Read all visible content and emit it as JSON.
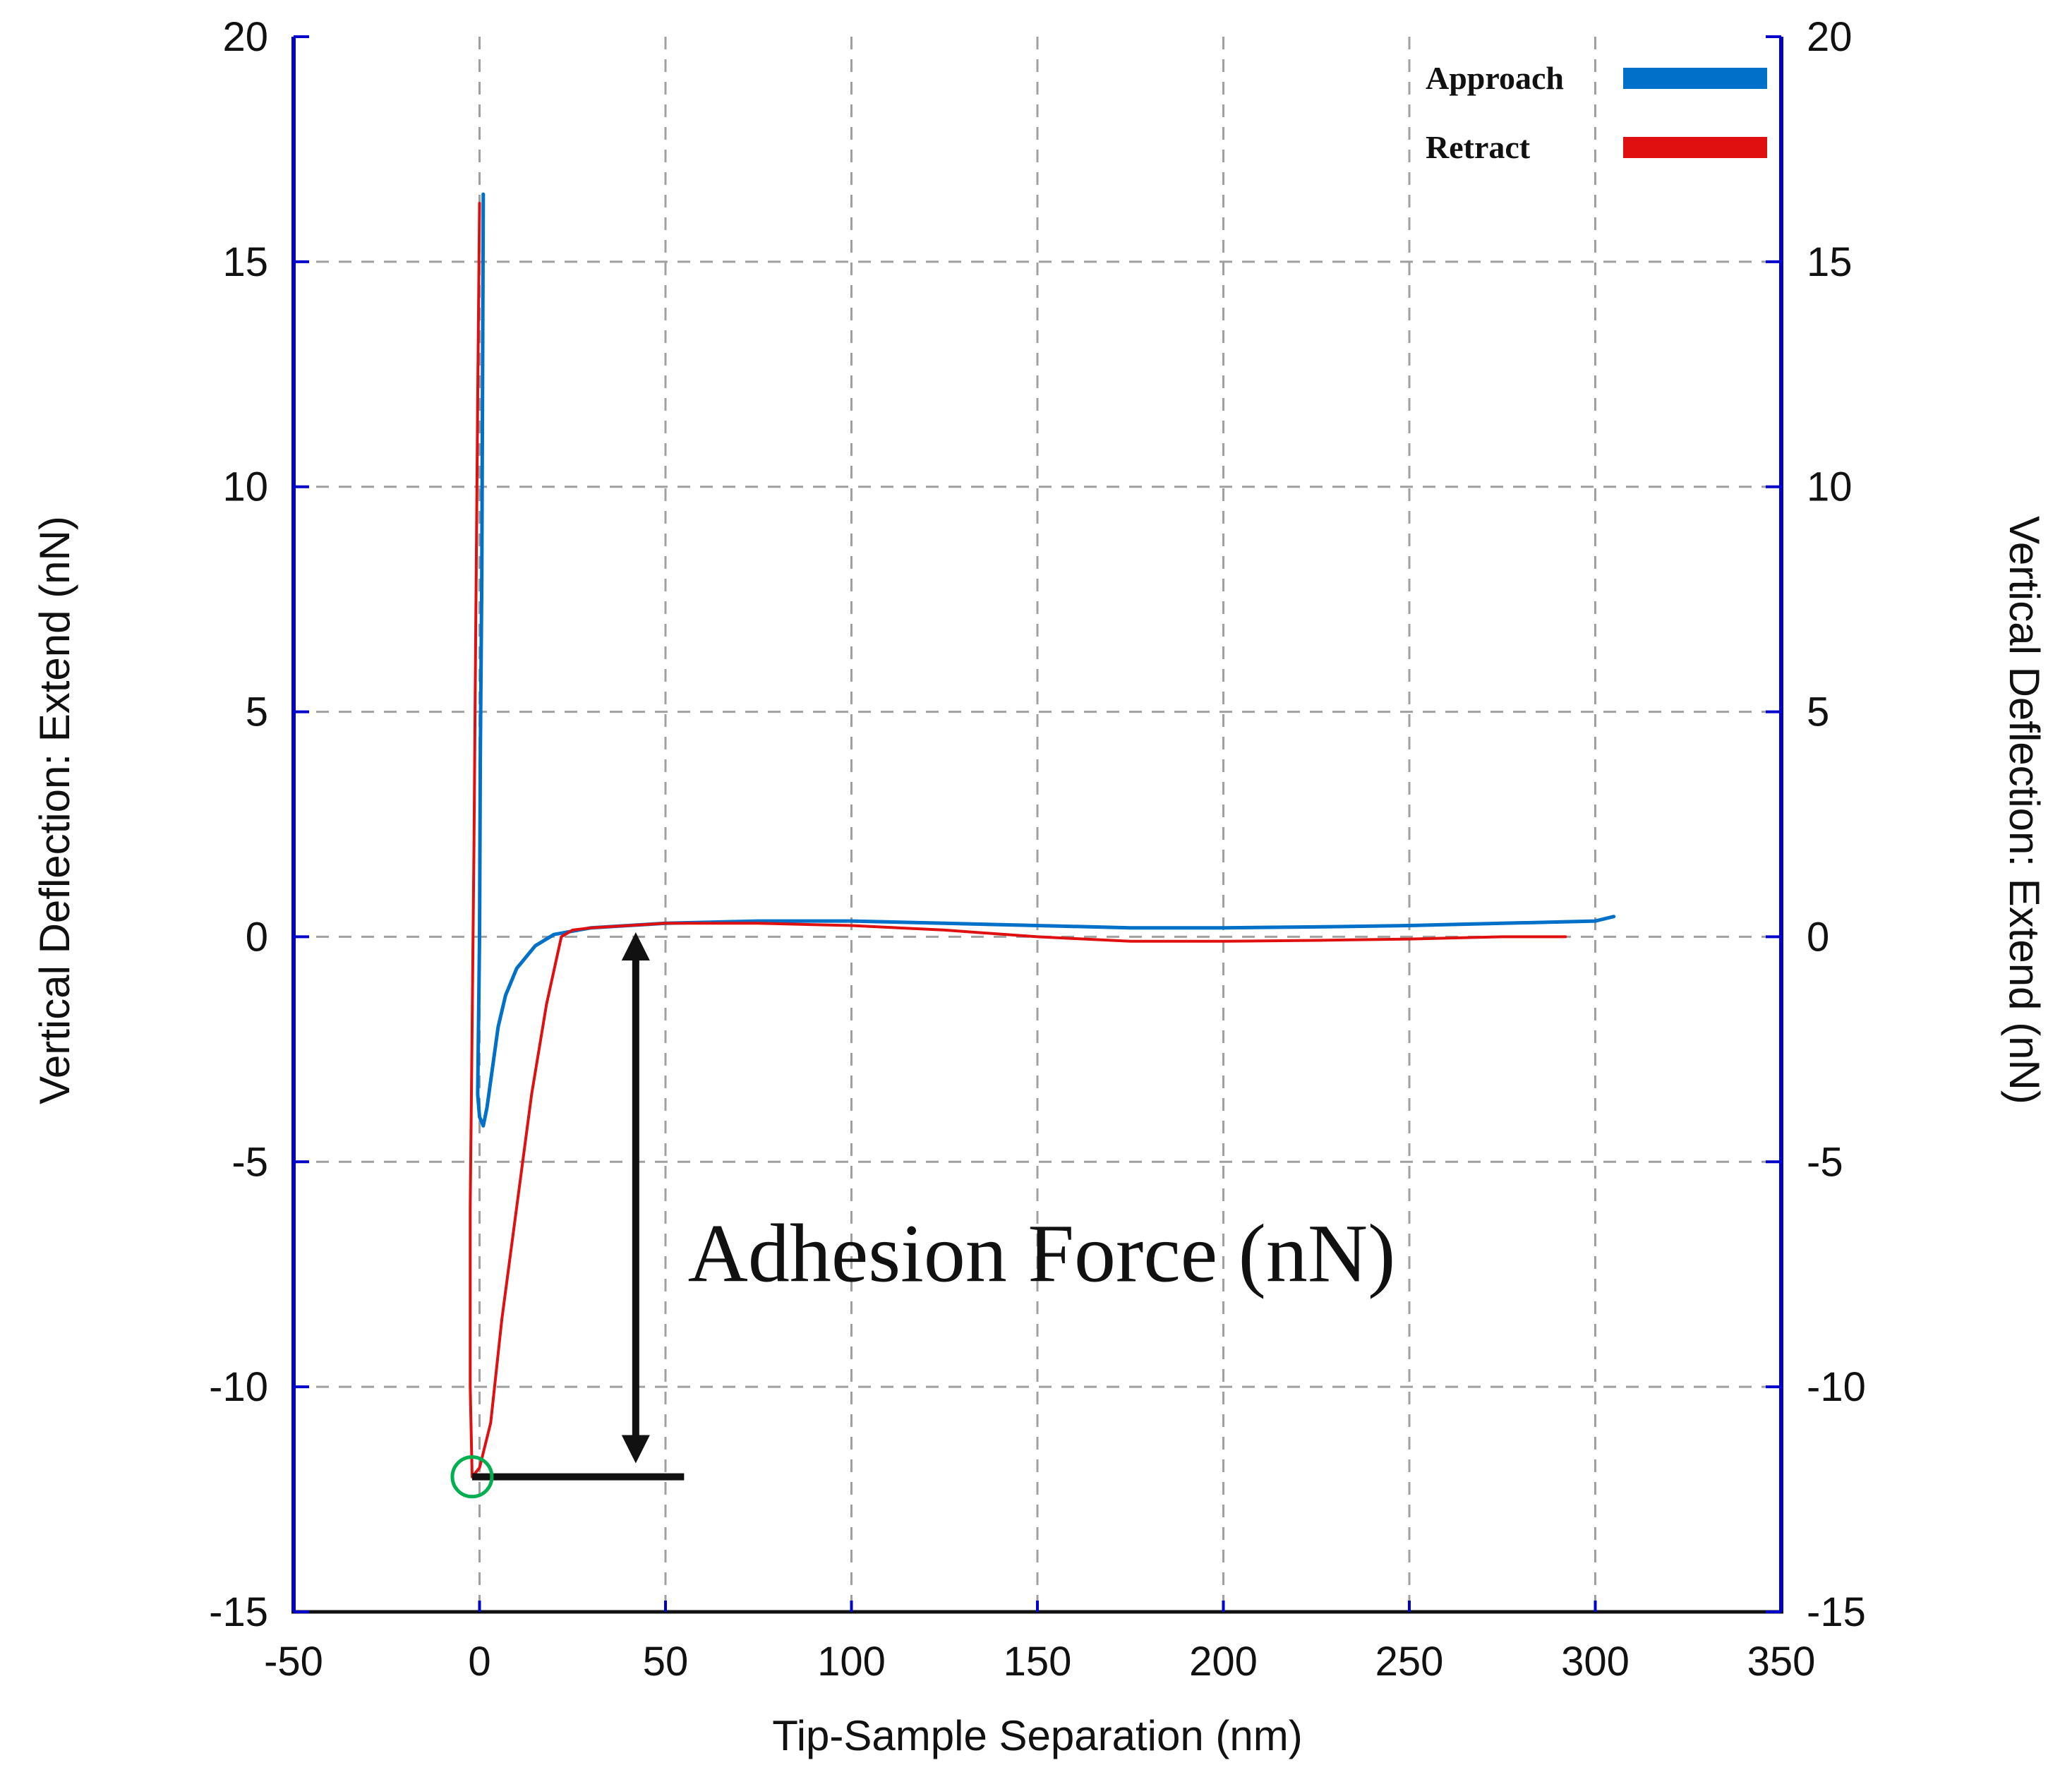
{
  "chart_data": {
    "type": "line",
    "xlabel": "Tip-Sample Separation (nm)",
    "ylabel_left": "Vertical Deflection: Extend (nN)",
    "ylabel_right": "Vertical Deflection: Extend (nN)",
    "xlim": [
      -50,
      350
    ],
    "ylim": [
      -15,
      20
    ],
    "x_ticks": [
      -50,
      0,
      50,
      100,
      150,
      200,
      250,
      300,
      350
    ],
    "y_ticks": [
      -15,
      -10,
      -5,
      0,
      5,
      10,
      15,
      20
    ],
    "grid": true,
    "grid_style": "dashed",
    "legend_position": "top-right",
    "colors": {
      "approach": "#0070c8",
      "retract": "#e01010",
      "axis": "#0000cc",
      "grid": "#a0a0a0",
      "marker": "#00b050"
    },
    "series": [
      {
        "name": "Approach",
        "color": "#0070c8",
        "points": [
          [
            1,
            16.5
          ],
          [
            0.8,
            12
          ],
          [
            0.6,
            8
          ],
          [
            0.2,
            4
          ],
          [
            0,
            0
          ],
          [
            -0.5,
            -3.5
          ],
          [
            0,
            -4.0
          ],
          [
            1,
            -4.2
          ],
          [
            2,
            -3.8
          ],
          [
            3,
            -3.2
          ],
          [
            4,
            -2.6
          ],
          [
            5,
            -2.0
          ],
          [
            7,
            -1.3
          ],
          [
            10,
            -0.7
          ],
          [
            15,
            -0.2
          ],
          [
            20,
            0.05
          ],
          [
            30,
            0.2
          ],
          [
            40,
            0.25
          ],
          [
            50,
            0.3
          ],
          [
            75,
            0.35
          ],
          [
            100,
            0.35
          ],
          [
            125,
            0.3
          ],
          [
            150,
            0.25
          ],
          [
            175,
            0.2
          ],
          [
            200,
            0.2
          ],
          [
            225,
            0.22
          ],
          [
            250,
            0.25
          ],
          [
            275,
            0.3
          ],
          [
            300,
            0.35
          ],
          [
            305,
            0.45
          ]
        ]
      },
      {
        "name": "Retract",
        "color": "#e01010",
        "points": [
          [
            0,
            16.3
          ],
          [
            -0.5,
            12
          ],
          [
            -1,
            7
          ],
          [
            -1.5,
            2
          ],
          [
            -2,
            -2
          ],
          [
            -2.5,
            -6
          ],
          [
            -2.5,
            -10
          ],
          [
            -2,
            -12
          ],
          [
            0,
            -11.8
          ],
          [
            3,
            -10.8
          ],
          [
            6,
            -8.5
          ],
          [
            10,
            -6
          ],
          [
            14,
            -3.5
          ],
          [
            18,
            -1.5
          ],
          [
            22,
            0
          ],
          [
            25,
            0.15
          ],
          [
            30,
            0.2
          ],
          [
            50,
            0.3
          ],
          [
            75,
            0.3
          ],
          [
            100,
            0.25
          ],
          [
            125,
            0.15
          ],
          [
            150,
            0.0
          ],
          [
            175,
            -0.1
          ],
          [
            200,
            -0.1
          ],
          [
            225,
            -0.08
          ],
          [
            250,
            -0.05
          ],
          [
            275,
            0.0
          ],
          [
            292,
            0.0
          ]
        ]
      }
    ],
    "annotations": [
      {
        "text": "Adhesion Force (nN)",
        "x": 56,
        "y": -7.5
      },
      {
        "type": "double-arrow",
        "x": 42,
        "y_from": 0.1,
        "y_to": -11.7
      },
      {
        "type": "baseline",
        "x_from": -2,
        "x_to": 55,
        "y": -12
      },
      {
        "type": "circle-marker",
        "x": -2,
        "y": -12
      }
    ]
  }
}
